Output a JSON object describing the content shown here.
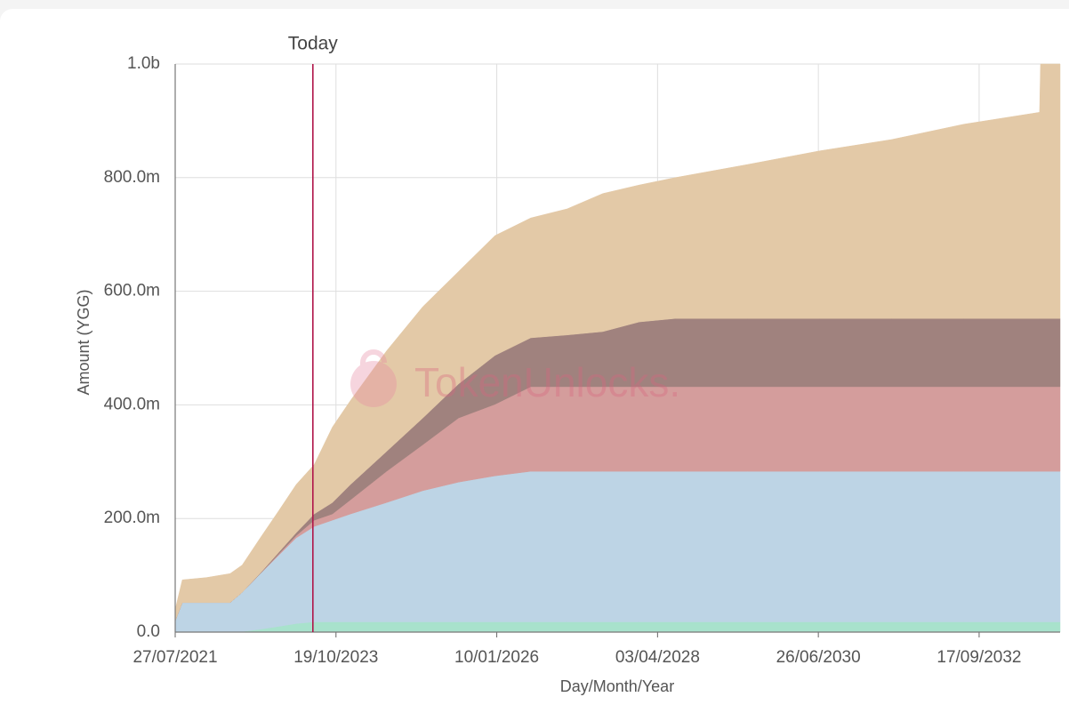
{
  "chart_data": {
    "type": "stacked-area",
    "y_label": "Amount (YGG)",
    "x_label": "Day/Month/Year",
    "watermark": "TokenUnlocks.",
    "today": {
      "label": "Today",
      "x": "2023-06-24",
      "color": "#b0164a"
    },
    "grid": true,
    "xlim": [
      "2021-07-27",
      "2033-11-01"
    ],
    "xticks": [
      {
        "value": "2021-07-27",
        "label": "27/07/2021"
      },
      {
        "value": "2023-10-19",
        "label": "19/10/2023"
      },
      {
        "value": "2026-01-10",
        "label": "10/01/2026"
      },
      {
        "value": "2028-04-03",
        "label": "03/04/2028"
      },
      {
        "value": "2030-06-26",
        "label": "26/06/2030"
      },
      {
        "value": "2032-09-17",
        "label": "17/09/2032"
      }
    ],
    "ylim": [
      0,
      1000000000
    ],
    "yticks": [
      {
        "value": 0,
        "label": "0.0"
      },
      {
        "value": 200000000,
        "label": "200.0m"
      },
      {
        "value": 400000000,
        "label": "400.0m"
      },
      {
        "value": 600000000,
        "label": "600.0m"
      },
      {
        "value": 800000000,
        "label": "800.0m"
      },
      {
        "value": 1000000000,
        "label": "1.0b"
      }
    ],
    "x": [
      "2021-07-27",
      "2021-09-01",
      "2022-01-01",
      "2022-05-01",
      "2022-07-01",
      "2022-10-01",
      "2023-01-01",
      "2023-04-01",
      "2023-07-01",
      "2023-10-01",
      "2024-01-01",
      "2024-07-01",
      "2025-01-01",
      "2025-07-01",
      "2026-01-01",
      "2026-07-01",
      "2027-01-01",
      "2027-07-01",
      "2028-01-01",
      "2028-07-01",
      "2029-07-01",
      "2030-07-01",
      "2031-07-01",
      "2032-07-01",
      "2033-07-20",
      "2033-07-25",
      "2033-11-01"
    ],
    "series": [
      {
        "color": "#a8e2cc",
        "values": [
          0,
          0,
          0,
          0,
          1000000,
          5000000,
          10000000,
          15000000,
          18000000,
          18000000,
          18000000,
          18000000,
          18000000,
          18000000,
          18000000,
          18000000,
          18000000,
          18000000,
          18000000,
          18000000,
          18000000,
          18000000,
          18000000,
          18000000,
          18000000,
          18000000,
          18000000
        ]
      },
      {
        "color": "#bdd4e5",
        "values": [
          20000000,
          52000000,
          52000000,
          52000000,
          69000000,
          98000000,
          125000000,
          151000000,
          168000000,
          179000000,
          190000000,
          210000000,
          231000000,
          246000000,
          257000000,
          265000000,
          265000000,
          265000000,
          265000000,
          265000000,
          265000000,
          265000000,
          265000000,
          265000000,
          265000000,
          265000000,
          265000000
        ]
      },
      {
        "color": "#d49d9c",
        "values": [
          0,
          0,
          0,
          0,
          0,
          0,
          2000000,
          4000000,
          11000000,
          11000000,
          25000000,
          55000000,
          81000000,
          113000000,
          126000000,
          149000000,
          149000000,
          149000000,
          149000000,
          149000000,
          149000000,
          149000000,
          149000000,
          149000000,
          149000000,
          149000000,
          149000000
        ]
      },
      {
        "color": "#a0827e",
        "values": [
          0,
          0,
          0,
          0,
          0,
          1000000,
          3000000,
          5000000,
          11000000,
          20000000,
          27000000,
          35000000,
          47000000,
          60000000,
          86000000,
          86000000,
          91000000,
          97000000,
          114000000,
          120000000,
          120000000,
          120000000,
          120000000,
          120000000,
          120000000,
          120000000,
          120000000
        ]
      },
      {
        "color": "#e3c9a7",
        "values": [
          20000000,
          40000000,
          44000000,
          51000000,
          48000000,
          62000000,
          73000000,
          85000000,
          87000000,
          133000000,
          148000000,
          177000000,
          196000000,
          198000000,
          211000000,
          211000000,
          222000000,
          243000000,
          241000000,
          248000000,
          271000000,
          295000000,
          315000000,
          342000000,
          363000000,
          448000000,
          448000000
        ]
      }
    ]
  }
}
